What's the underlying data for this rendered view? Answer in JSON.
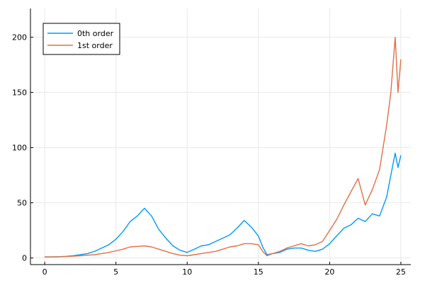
{
  "chart_data": {
    "type": "line",
    "title": "",
    "xlabel": "",
    "ylabel": "",
    "xlim": [
      -1,
      25.7
    ],
    "ylim": [
      -6,
      226
    ],
    "x_ticks": [
      0,
      5,
      10,
      15,
      20,
      25
    ],
    "y_ticks": [
      0,
      50,
      100,
      150,
      200
    ],
    "grid": true,
    "legend_position": "top-left",
    "series": [
      {
        "name": "0th order",
        "color": "#009af9",
        "x": [
          0,
          0.5,
          1,
          1.5,
          2,
          2.5,
          3,
          3.5,
          4,
          4.5,
          5,
          5.5,
          6,
          6.5,
          7,
          7.5,
          8,
          8.5,
          9,
          9.5,
          10,
          10.5,
          11,
          11.5,
          12,
          12.5,
          13,
          13.5,
          14,
          14.5,
          15,
          15.3,
          15.6,
          16,
          16.5,
          17,
          17.5,
          18,
          18.5,
          19,
          19.5,
          20,
          20.5,
          21,
          21.5,
          22,
          22.5,
          23,
          23.5,
          24,
          24.3,
          24.6,
          24.8,
          25
        ],
        "y": [
          1,
          1,
          1.2,
          1.5,
          2,
          3,
          4,
          6,
          9,
          12,
          17,
          24,
          33,
          38,
          45,
          38,
          26,
          18,
          11,
          7,
          5,
          8,
          11,
          12,
          15,
          18,
          21,
          27,
          34,
          28,
          20,
          10,
          3,
          4,
          5,
          8,
          9,
          9,
          7,
          6,
          8,
          13,
          20,
          27,
          30,
          36,
          33,
          40,
          38,
          55,
          75,
          95,
          82,
          93
        ]
      },
      {
        "name": "1st order",
        "color": "#e26f46",
        "x": [
          0,
          0.5,
          1,
          1.5,
          2,
          2.5,
          3,
          3.5,
          4,
          4.5,
          5,
          5.5,
          6,
          6.5,
          7,
          7.5,
          8,
          8.5,
          9,
          9.5,
          10,
          10.5,
          11,
          11.5,
          12,
          12.5,
          13,
          13.5,
          14,
          14.5,
          15,
          15.3,
          15.6,
          16,
          16.5,
          17,
          17.5,
          18,
          18.5,
          19,
          19.5,
          20,
          20.5,
          21,
          21.5,
          22,
          22.5,
          23,
          23.5,
          24,
          24.3,
          24.6,
          24.8,
          25
        ],
        "y": [
          1,
          1,
          1.1,
          1.3,
          1.6,
          2,
          2.5,
          3,
          4,
          5,
          6.5,
          8,
          10,
          10.5,
          11,
          10,
          8,
          6,
          4,
          2.5,
          2,
          3,
          4,
          5,
          6,
          8,
          10,
          11,
          13,
          13,
          12,
          6,
          2,
          4,
          6,
          9,
          11,
          13,
          11,
          12,
          15,
          25,
          35,
          48,
          60,
          72,
          48,
          62,
          80,
          120,
          150,
          200,
          150,
          180
        ]
      }
    ]
  }
}
